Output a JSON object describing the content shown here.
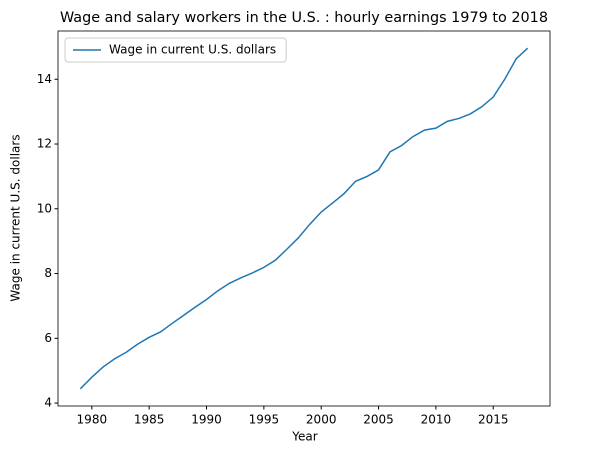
{
  "chart_data": {
    "type": "line",
    "title": "Wage and salary workers in the U.S. : hourly earnings 1979 to 2018",
    "x_label": "Year",
    "y_label": "Wage in current U.S. dollars",
    "x": [
      1979,
      1980,
      1981,
      1982,
      1983,
      1984,
      1985,
      1986,
      1987,
      1988,
      1989,
      1990,
      1991,
      1992,
      1993,
      1994,
      1995,
      1996,
      1997,
      1998,
      1999,
      2000,
      2001,
      2002,
      2003,
      2004,
      2005,
      2006,
      2007,
      2008,
      2009,
      2010,
      2011,
      2012,
      2013,
      2014,
      2015,
      2016,
      2017,
      2018
    ],
    "series": [
      {
        "name": "Wage in current U.S. dollars",
        "color": "#1f77b4",
        "values": [
          4.44,
          4.8,
          5.12,
          5.37,
          5.57,
          5.82,
          6.03,
          6.2,
          6.46,
          6.71,
          6.96,
          7.2,
          7.47,
          7.7,
          7.87,
          8.02,
          8.19,
          8.41,
          8.75,
          9.1,
          9.52,
          9.9,
          10.18,
          10.47,
          10.85,
          11.0,
          11.2,
          11.76,
          11.95,
          12.23,
          12.43,
          12.49,
          12.7,
          12.79,
          12.93,
          13.15,
          13.45,
          14.0,
          14.63,
          14.96
        ]
      }
    ],
    "xlim": [
      1977.05,
      2019.95
    ],
    "xticks": [
      1980,
      1985,
      1990,
      1995,
      2000,
      2005,
      2010,
      2015
    ],
    "ylim": [
      3.91,
      15.49
    ],
    "yticks": [
      4,
      6,
      8,
      10,
      12,
      14
    ],
    "legend": "upper left"
  }
}
